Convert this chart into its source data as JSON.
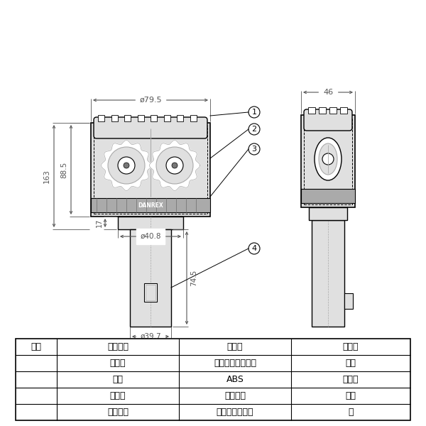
{
  "bg_color": "#ffffff",
  "line_color": "#000000",
  "dim_color": "#555555",
  "light_gray": "#e0e0e0",
  "mid_gray": "#aaaaaa",
  "dark_gray": "#777777",
  "col_headers": [
    "番号",
    "部品名称",
    "材　質",
    "備　考"
  ],
  "rows": [
    [
      "①",
      "ケース",
      "ポリカーボネート",
      "透明"
    ],
    [
      "②",
      "本体",
      "ABS",
      "ミラー"
    ],
    [
      "③",
      "レンズ",
      "アクリル",
      "透明"
    ],
    [
      "④",
      "グリップ",
      "ポリプロピレン",
      "黒"
    ]
  ],
  "dim_79_5": "ø79.5",
  "dim_46": "46",
  "dim_88_5": "88.5",
  "dim_163": "163",
  "dim_17": "17",
  "dim_40_8": "ø40.8",
  "dim_74_5": "74.5",
  "dim_39_7": "ø39.7",
  "brand": "DANREX"
}
